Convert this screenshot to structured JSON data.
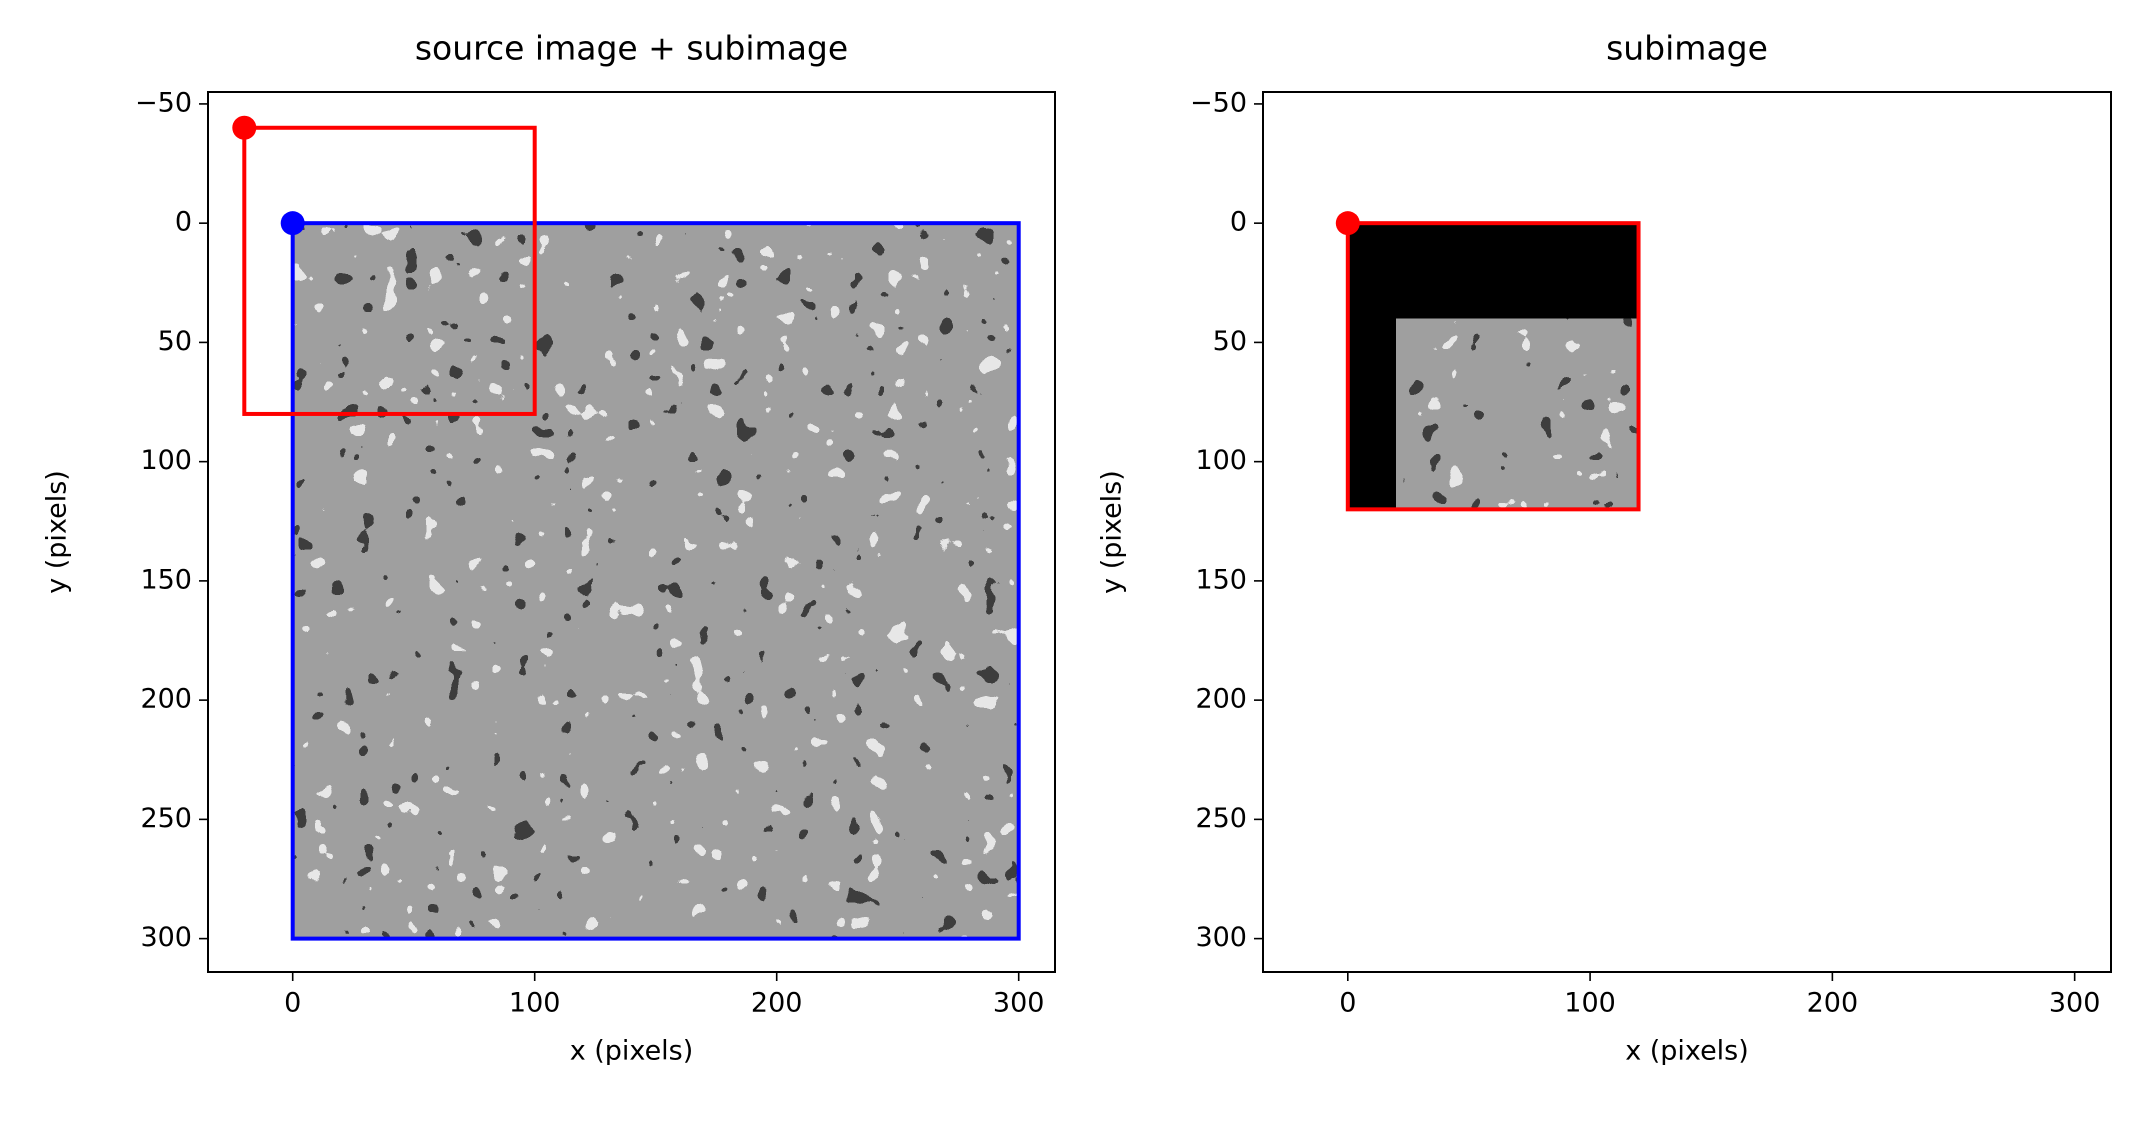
{
  "chart_data": [
    {
      "type": "image",
      "title": "source image + subimage",
      "xlabel": "x (pixels)",
      "ylabel": "y (pixels)",
      "xlim": [
        -35,
        315
      ],
      "ylim": [
        314,
        -55
      ],
      "y_inverted": true,
      "xticks": [
        0,
        100,
        200,
        300
      ],
      "yticks": [
        {
          "value": -50,
          "label": "−50"
        },
        0,
        50,
        100,
        150,
        200,
        250,
        300
      ],
      "images": [
        {
          "x": [
            0,
            300
          ],
          "y": [
            0,
            300
          ]
        }
      ],
      "rectangles": [
        {
          "color": "#0000ff",
          "x": 0,
          "y": 0,
          "width": 300,
          "height": 300
        },
        {
          "color": "#ff0000",
          "x": -20,
          "y": -40,
          "width": 120,
          "height": 120
        }
      ],
      "points": [
        {
          "color": "#ff0000",
          "x": -20,
          "y": -40
        },
        {
          "color": "#0000ff",
          "x": 0,
          "y": 0
        }
      ]
    },
    {
      "type": "image",
      "title": "subimage",
      "xlabel": "x (pixels)",
      "ylabel": "y (pixels)",
      "xlim": [
        -35,
        315
      ],
      "ylim": [
        314,
        -55
      ],
      "y_inverted": true,
      "xticks": [
        0,
        100,
        200,
        300
      ],
      "yticks": [
        {
          "value": -50,
          "label": "−50"
        },
        0,
        50,
        100,
        150,
        200,
        250,
        300
      ],
      "images": [
        {
          "x": [
            0,
            120
          ],
          "y": [
            0,
            120
          ],
          "color": "#000000"
        },
        {
          "x": [
            20,
            120
          ],
          "y": [
            40,
            120
          ]
        }
      ],
      "rectangles": [
        {
          "color": "#ff0000",
          "x": 0,
          "y": 0,
          "width": 120,
          "height": 120
        }
      ],
      "points": [
        {
          "color": "#ff0000",
          "x": 0,
          "y": 0
        }
      ]
    }
  ]
}
